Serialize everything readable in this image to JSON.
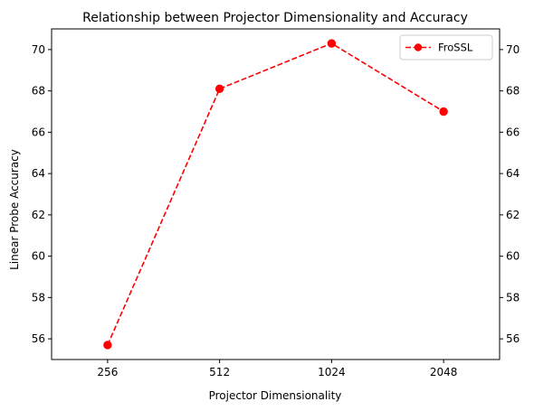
{
  "chart_data": {
    "type": "line",
    "title": "Relationship between Projector Dimensionality and Accuracy",
    "xlabel": "Projector Dimensionality",
    "ylabel": "Linear Probe Accuracy",
    "categories": [
      "256",
      "512",
      "1024",
      "2048"
    ],
    "series": [
      {
        "name": "FroSSL",
        "values": [
          55.7,
          68.1,
          70.3,
          67.0
        ],
        "color": "#ff0000",
        "line_style": "dashed",
        "marker": "circle"
      }
    ],
    "ylim": [
      55.0,
      71.0
    ],
    "yticks": [
      56,
      58,
      60,
      62,
      64,
      66,
      68,
      70
    ],
    "secondary_y_axis": "mirrored on right side",
    "grid": false,
    "legend_position": "top-right"
  }
}
